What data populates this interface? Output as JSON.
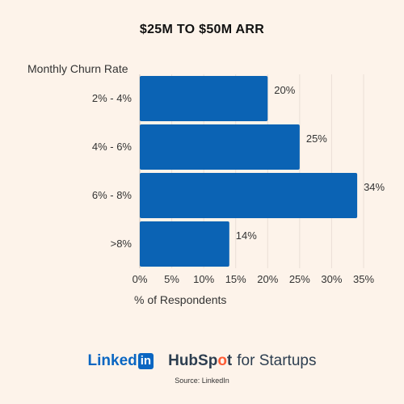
{
  "chart_data": {
    "type": "bar",
    "orientation": "horizontal",
    "title": "$25M TO $50M ARR",
    "category_axis_label": "Monthly Churn Rate",
    "value_axis_label": "% of Respondents",
    "categories": [
      "2% - 4%",
      "4% - 6%",
      "6% - 8%",
      ">8%"
    ],
    "values": [
      20,
      25,
      34,
      14
    ],
    "data_labels": [
      "20%",
      "25%",
      "34%",
      "14%"
    ],
    "xlim": [
      0,
      35
    ],
    "x_ticks": [
      0,
      5,
      10,
      15,
      20,
      25,
      30,
      35
    ],
    "x_tick_labels": [
      "0%",
      "5%",
      "10%",
      "15%",
      "20%",
      "25%",
      "30%",
      "35%"
    ],
    "grid": "vertical",
    "bar_color": "#0b63b4"
  },
  "logos": {
    "linkedin_text": "Linked",
    "linkedin_box": "in",
    "hubspot_hub": "HubSp",
    "hubspot_o": "o",
    "hubspot_t": "t",
    "hubspot_suffix": "for Startups"
  },
  "source": "Source: LinkedIn",
  "colors": {
    "background": "#fdf3ea",
    "bar": "#0b63b4",
    "grid": "#eadfd6",
    "linkedin_blue": "#0a66c2",
    "hubspot_orange": "#ff5c35"
  }
}
